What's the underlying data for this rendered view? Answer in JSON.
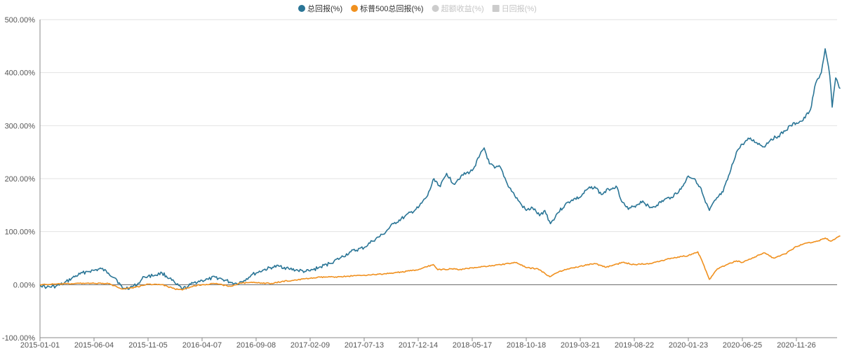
{
  "chart_data": {
    "type": "line",
    "title": "",
    "xlabel": "",
    "ylabel": "",
    "ylim": [
      -100,
      500
    ],
    "y_ticks": [
      "-100.00%",
      "0.00%",
      "100.00%",
      "200.00%",
      "300.00%",
      "400.00%",
      "500.00%"
    ],
    "x_ticks": [
      "2015-01-01",
      "2015-06-04",
      "2015-11-05",
      "2016-04-07",
      "2016-09-08",
      "2017-02-09",
      "2017-07-13",
      "2017-12-14",
      "2018-05-17",
      "2018-10-18",
      "2019-03-21",
      "2019-08-22",
      "2020-01-23",
      "2020-06-25",
      "2020-11-26"
    ],
    "grid": true,
    "legend_position": "top-center",
    "legend": [
      {
        "name": "总回报(%)",
        "color": "#2a7596",
        "shape": "circle",
        "active": true
      },
      {
        "name": "标普500总回报(%)",
        "color": "#f0901e",
        "shape": "circle",
        "active": true
      },
      {
        "name": "超额收益(%)",
        "color": "#cccccc",
        "shape": "circle",
        "active": false
      },
      {
        "name": "日回报(%)",
        "color": "#cccccc",
        "shape": "square",
        "active": false
      }
    ],
    "series": [
      {
        "name": "总回报(%)",
        "color": "#2a7596",
        "points": [
          [
            "2015-01-01",
            0
          ],
          [
            "2015-01-20",
            -5
          ],
          [
            "2015-02-15",
            -3
          ],
          [
            "2015-03-10",
            2
          ],
          [
            "2015-04-01",
            12
          ],
          [
            "2015-04-25",
            20
          ],
          [
            "2015-05-15",
            25
          ],
          [
            "2015-06-04",
            27
          ],
          [
            "2015-06-25",
            30
          ],
          [
            "2015-07-15",
            22
          ],
          [
            "2015-08-05",
            12
          ],
          [
            "2015-08-25",
            -8
          ],
          [
            "2015-09-15",
            -5
          ],
          [
            "2015-10-05",
            0
          ],
          [
            "2015-10-25",
            15
          ],
          [
            "2015-11-05",
            16
          ],
          [
            "2015-11-25",
            18
          ],
          [
            "2015-12-15",
            22
          ],
          [
            "2016-01-05",
            12
          ],
          [
            "2016-01-25",
            0
          ],
          [
            "2016-02-12",
            -8
          ],
          [
            "2016-02-28",
            -3
          ],
          [
            "2016-03-15",
            4
          ],
          [
            "2016-04-07",
            8
          ],
          [
            "2016-04-25",
            10
          ],
          [
            "2016-05-15",
            14
          ],
          [
            "2016-06-05",
            10
          ],
          [
            "2016-06-25",
            5
          ],
          [
            "2016-07-15",
            2
          ],
          [
            "2016-08-05",
            8
          ],
          [
            "2016-08-25",
            18
          ],
          [
            "2016-09-08",
            22
          ],
          [
            "2016-09-30",
            28
          ],
          [
            "2016-10-25",
            33
          ],
          [
            "2016-11-15",
            35
          ],
          [
            "2016-12-10",
            30
          ],
          [
            "2017-01-05",
            27
          ],
          [
            "2017-01-25",
            25
          ],
          [
            "2017-02-09",
            26
          ],
          [
            "2017-03-05",
            32
          ],
          [
            "2017-04-05",
            40
          ],
          [
            "2017-05-05",
            50
          ],
          [
            "2017-06-05",
            62
          ],
          [
            "2017-07-13",
            70
          ],
          [
            "2017-08-05",
            82
          ],
          [
            "2017-09-05",
            95
          ],
          [
            "2017-10-05",
            115
          ],
          [
            "2017-11-05",
            128
          ],
          [
            "2017-12-14",
            145
          ],
          [
            "2018-01-10",
            168
          ],
          [
            "2018-01-28",
            200
          ],
          [
            "2018-02-15",
            185
          ],
          [
            "2018-03-05",
            210
          ],
          [
            "2018-03-25",
            190
          ],
          [
            "2018-04-15",
            205
          ],
          [
            "2018-05-17",
            215
          ],
          [
            "2018-06-05",
            240
          ],
          [
            "2018-06-20",
            258
          ],
          [
            "2018-07-05",
            228
          ],
          [
            "2018-07-20",
            220
          ],
          [
            "2018-08-05",
            222
          ],
          [
            "2018-08-25",
            190
          ],
          [
            "2018-09-15",
            168
          ],
          [
            "2018-10-05",
            150
          ],
          [
            "2018-10-18",
            140
          ],
          [
            "2018-11-05",
            145
          ],
          [
            "2018-11-25",
            130
          ],
          [
            "2018-12-10",
            140
          ],
          [
            "2018-12-26",
            115
          ],
          [
            "2019-01-15",
            135
          ],
          [
            "2019-02-05",
            150
          ],
          [
            "2019-02-25",
            160
          ],
          [
            "2019-03-21",
            165
          ],
          [
            "2019-04-10",
            180
          ],
          [
            "2019-05-01",
            185
          ],
          [
            "2019-05-20",
            170
          ],
          [
            "2019-06-10",
            180
          ],
          [
            "2019-07-01",
            186
          ],
          [
            "2019-07-20",
            155
          ],
          [
            "2019-08-05",
            142
          ],
          [
            "2019-08-22",
            148
          ],
          [
            "2019-09-15",
            158
          ],
          [
            "2019-10-05",
            145
          ],
          [
            "2019-10-25",
            150
          ],
          [
            "2019-11-15",
            160
          ],
          [
            "2019-12-05",
            165
          ],
          [
            "2020-01-02",
            180
          ],
          [
            "2020-01-23",
            205
          ],
          [
            "2020-02-10",
            200
          ],
          [
            "2020-02-25",
            185
          ],
          [
            "2020-03-12",
            155
          ],
          [
            "2020-03-23",
            140
          ],
          [
            "2020-04-10",
            160
          ],
          [
            "2020-05-01",
            175
          ],
          [
            "2020-05-20",
            210
          ],
          [
            "2020-06-08",
            250
          ],
          [
            "2020-06-25",
            265
          ],
          [
            "2020-07-15",
            275
          ],
          [
            "2020-08-05",
            268
          ],
          [
            "2020-08-25",
            260
          ],
          [
            "2020-09-15",
            275
          ],
          [
            "2020-10-05",
            280
          ],
          [
            "2020-10-25",
            290
          ],
          [
            "2020-11-10",
            300
          ],
          [
            "2020-11-26",
            305
          ],
          [
            "2020-12-15",
            310
          ],
          [
            "2021-01-05",
            330
          ],
          [
            "2021-01-20",
            380
          ],
          [
            "2021-02-05",
            400
          ],
          [
            "2021-02-16",
            445
          ],
          [
            "2021-03-01",
            395
          ],
          [
            "2021-03-08",
            335
          ],
          [
            "2021-03-18",
            390
          ],
          [
            "2021-03-31",
            370
          ]
        ]
      },
      {
        "name": "标普500总回报(%)",
        "color": "#f0901e",
        "points": [
          [
            "2015-01-01",
            0
          ],
          [
            "2015-02-15",
            1
          ],
          [
            "2015-04-01",
            2
          ],
          [
            "2015-05-20",
            3
          ],
          [
            "2015-06-04",
            2.5
          ],
          [
            "2015-07-15",
            2
          ],
          [
            "2015-08-25",
            -8
          ],
          [
            "2015-09-30",
            -5
          ],
          [
            "2015-11-05",
            1
          ],
          [
            "2015-12-15",
            0
          ],
          [
            "2016-01-20",
            -8
          ],
          [
            "2016-02-11",
            -10
          ],
          [
            "2016-03-15",
            -2
          ],
          [
            "2016-04-07",
            0
          ],
          [
            "2016-05-15",
            2
          ],
          [
            "2016-06-27",
            -3
          ],
          [
            "2016-07-25",
            3
          ],
          [
            "2016-09-08",
            4
          ],
          [
            "2016-10-25",
            2
          ],
          [
            "2016-11-20",
            6
          ],
          [
            "2016-12-20",
            8
          ],
          [
            "2017-02-09",
            12
          ],
          [
            "2017-03-10",
            14
          ],
          [
            "2017-05-05",
            15
          ],
          [
            "2017-07-13",
            18
          ],
          [
            "2017-09-05",
            20
          ],
          [
            "2017-10-15",
            23
          ],
          [
            "2017-12-14",
            28
          ],
          [
            "2018-01-26",
            38
          ],
          [
            "2018-02-08",
            28
          ],
          [
            "2018-03-20",
            30
          ],
          [
            "2018-04-10",
            28
          ],
          [
            "2018-05-17",
            32
          ],
          [
            "2018-07-15",
            36
          ],
          [
            "2018-09-20",
            42
          ],
          [
            "2018-10-18",
            32
          ],
          [
            "2018-11-20",
            30
          ],
          [
            "2018-12-24",
            15
          ],
          [
            "2019-01-20",
            25
          ],
          [
            "2019-03-21",
            35
          ],
          [
            "2019-04-30",
            40
          ],
          [
            "2019-06-03",
            33
          ],
          [
            "2019-07-20",
            42
          ],
          [
            "2019-08-22",
            38
          ],
          [
            "2019-10-05",
            40
          ],
          [
            "2019-12-05",
            50
          ],
          [
            "2020-01-23",
            55
          ],
          [
            "2020-02-19",
            62
          ],
          [
            "2020-03-05",
            40
          ],
          [
            "2020-03-23",
            10
          ],
          [
            "2020-04-15",
            30
          ],
          [
            "2020-06-08",
            45
          ],
          [
            "2020-06-25",
            42
          ],
          [
            "2020-08-25",
            60
          ],
          [
            "2020-09-23",
            50
          ],
          [
            "2020-10-25",
            58
          ],
          [
            "2020-11-26",
            72
          ],
          [
            "2020-12-20",
            78
          ],
          [
            "2021-01-25",
            82
          ],
          [
            "2021-02-16",
            88
          ],
          [
            "2021-03-04",
            82
          ],
          [
            "2021-03-31",
            92
          ]
        ]
      }
    ]
  }
}
